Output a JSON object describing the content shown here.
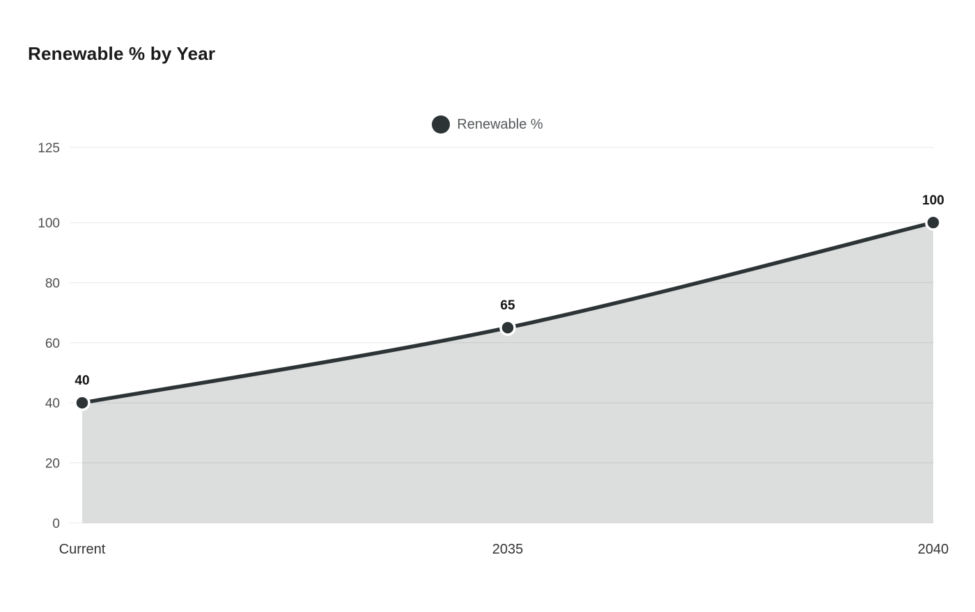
{
  "chart_data": {
    "type": "area",
    "title": "Renewable % by Year",
    "categories": [
      "Current",
      "2035",
      "2040"
    ],
    "series": [
      {
        "name": "Renewable %",
        "values": [
          40,
          65,
          100
        ]
      }
    ],
    "data_labels": [
      "40",
      "65",
      "100"
    ],
    "xlabel": "",
    "ylabel": "",
    "ylim": [
      0,
      125
    ],
    "yticks": [
      0,
      20,
      40,
      60,
      80,
      100,
      125
    ],
    "grid": true,
    "legend_position": "top-center",
    "colors": {
      "line": "#2d3436",
      "fill": "rgba(45,52,54,0.17)",
      "marker": "#2d3436",
      "marker_stroke": "#ffffff",
      "grid": "#e7e7e7",
      "tick_label": "#4f4f4f",
      "x_label": "#333333",
      "data_label": "#111111"
    }
  }
}
